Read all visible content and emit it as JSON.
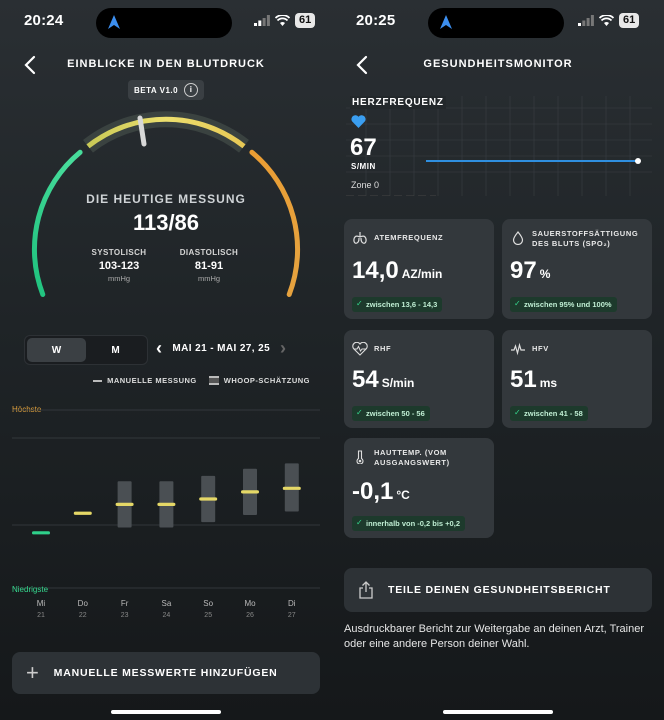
{
  "left": {
    "status": {
      "time": "20:24",
      "battery": "61"
    },
    "header": {
      "title": "EINBLICKE IN DEN BLUTDRUCK",
      "beta": "BETA V1.0",
      "info": "i"
    },
    "gauge": {
      "heading": "DIE HEUTIGE MESSUNG",
      "value": "113/86",
      "systolic_label": "SYSTOLISCH",
      "systolic_value": "103-123",
      "systolic_unit": "mmHg",
      "diastolic_label": "DIASTOLISCH",
      "diastolic_value": "81-91",
      "diastolic_unit": "mmHg",
      "colors": {
        "low": "#2fd08a",
        "mid": "#e5d867",
        "high": "#e79a34"
      }
    },
    "segment": {
      "week": "W",
      "month": "M",
      "selected": "W"
    },
    "range": {
      "label": "MAI 21 - MAI 27, 25",
      "prev": "‹",
      "next": "›"
    },
    "legend": {
      "manual": "MANUELLE MESSUNG",
      "whoop": "WHOOP-SCHÄTZUNG"
    },
    "chart": {
      "high_label": "Höchste",
      "low_label": "Niedrigste",
      "days": [
        {
          "day": "Mi",
          "date": "21"
        },
        {
          "day": "Do",
          "date": "22"
        },
        {
          "day": "Fr",
          "date": "23"
        },
        {
          "day": "Sa",
          "date": "24"
        },
        {
          "day": "So",
          "date": "25"
        },
        {
          "day": "Mo",
          "date": "26"
        },
        {
          "day": "Di",
          "date": "27"
        }
      ],
      "levels": [
        0.31,
        0.42,
        0.47,
        0.47,
        0.5,
        0.54,
        0.56
      ],
      "band_low": [
        null,
        null,
        0.34,
        0.34,
        0.37,
        0.41,
        0.43
      ],
      "band_high": [
        null,
        null,
        0.6,
        0.6,
        0.63,
        0.67,
        0.7
      ],
      "marker_colors": [
        "#2fd08a",
        "#e5d867",
        "#e5d867",
        "#e5d867",
        "#e5d867",
        "#e5d867",
        "#e5d867"
      ]
    },
    "add_button": {
      "label": "MANUELLE MESSWERTE HINZUFÜGEN"
    }
  },
  "right": {
    "status": {
      "time": "20:25",
      "battery": "61"
    },
    "header": {
      "title": "GESUNDHEITSMONITOR"
    },
    "heart_rate": {
      "label": "HERZFREQUENZ",
      "value": "67",
      "unit": "S/MIN",
      "zone": "Zone 0",
      "line_color": "#2f8fe0"
    },
    "cards": [
      {
        "id": "atem",
        "title": "ATEMFREQUENZ",
        "value": "14,0",
        "unit": "AZ/min",
        "range": "zwischen 13,6 - 14,3",
        "icon": "lungs-icon"
      },
      {
        "id": "spo2",
        "title": "SAUERSTOFFSÄTTIGUNG DES BLUTS (SPO₂)",
        "value": "97",
        "unit": "%",
        "range": "zwischen 95% und 100%",
        "icon": "droplet-icon"
      },
      {
        "id": "rhf",
        "title": "RHF",
        "value": "54",
        "unit": "S/min",
        "range": "zwischen 50 - 56",
        "icon": "heart-rate-icon"
      },
      {
        "id": "hfv",
        "title": "HFV",
        "value": "51",
        "unit": "ms",
        "range": "zwischen 41 - 58",
        "icon": "wave-icon"
      },
      {
        "id": "temp",
        "title": "HAUTTEMP. (VOM AUSGANGSWERT)",
        "value": "-0,1",
        "unit": "°C",
        "range": "innerhalb von -0,2 bis +0,2",
        "icon": "thermometer-icon"
      }
    ],
    "share": {
      "label": "TEILE DEINEN GESUNDHEITSBERICHT",
      "description": "Ausdruckbarer Bericht zur Weitergabe an deinen Arzt, Trainer oder eine andere Person deiner Wahl."
    }
  }
}
